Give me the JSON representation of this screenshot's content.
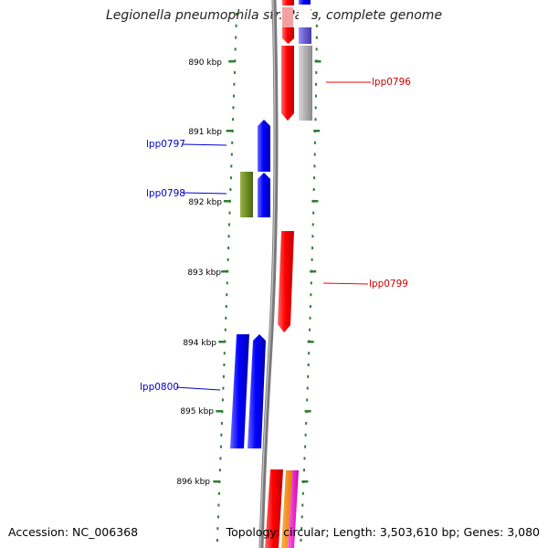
{
  "title": "Legionella pneumophila str. Paris, complete genome",
  "footer": {
    "accession": "Accession: NC_006368",
    "summary": "Topology: circular; Length: 3,503,610 bp; Genes: 3,080"
  },
  "ruler": {
    "unit": "kbp",
    "ticks": [
      "890 kbp",
      "891 kbp",
      "892 kbp",
      "893 kbp",
      "894 kbp",
      "895 kbp",
      "896 kbp"
    ]
  },
  "colors": {
    "forward": "#ff0000",
    "reverse": "#0000ff",
    "olive": "#6b8e23",
    "orange": "#ff8c00",
    "magenta": "#ff00cc",
    "purple": "#6a5acd",
    "grey": "#b0b0b0",
    "axis_green": "#2e7d32",
    "backbone": "#808080"
  },
  "genes": [
    {
      "name": "lpp0796",
      "strand": "forward"
    },
    {
      "name": "lpp0797",
      "strand": "reverse"
    },
    {
      "name": "lpp0798",
      "strand": "reverse"
    },
    {
      "name": "lpp0799",
      "strand": "forward"
    },
    {
      "name": "lpp0800",
      "strand": "reverse"
    }
  ]
}
